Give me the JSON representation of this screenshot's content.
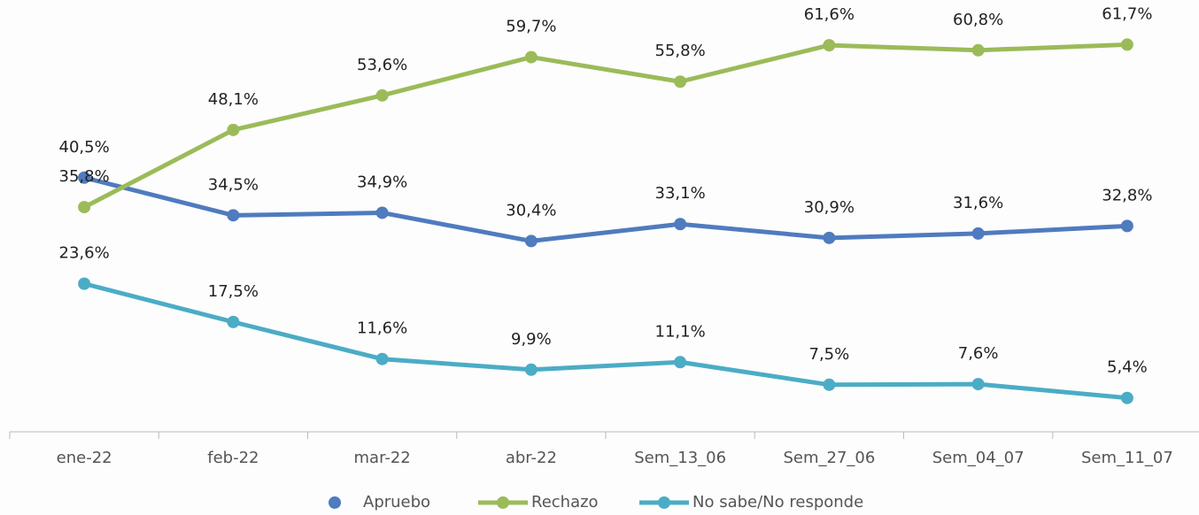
{
  "chart_data": {
    "type": "line",
    "categories": [
      "ene-22",
      "feb-22",
      "mar-22",
      "abr-22",
      "Sem_13_06",
      "Sem_27_06",
      "Sem_04_07",
      "Sem_11_07"
    ],
    "series": [
      {
        "name": "Apruebo",
        "color": "#4f7bbf",
        "values": [
          40.5,
          34.5,
          34.9,
          30.4,
          33.1,
          30.9,
          31.6,
          32.8
        ],
        "value_labels": [
          "40,5%",
          "34,5%",
          "34,9%",
          "30,4%",
          "33,1%",
          "30,9%",
          "31,6%",
          "32,8%"
        ]
      },
      {
        "name": "Rechazo",
        "color": "#9bbb59",
        "values": [
          35.8,
          48.1,
          53.6,
          59.7,
          55.8,
          61.6,
          60.8,
          61.7
        ],
        "value_labels": [
          "35,8%",
          "48,1%",
          "53,6%",
          "59,7%",
          "55,8%",
          "61,6%",
          "60,8%",
          "61,7%"
        ]
      },
      {
        "name": "No sabe/No responde",
        "color": "#4bacc6",
        "values": [
          23.6,
          17.5,
          11.6,
          9.9,
          11.1,
          7.5,
          7.6,
          5.4
        ],
        "value_labels": [
          "23,6%",
          "17,5%",
          "11,6%",
          "9,9%",
          "11,1%",
          "7,5%",
          "7,6%",
          "5,4%"
        ]
      }
    ],
    "ylim": [
      0,
      65
    ],
    "legend": "bottom"
  }
}
